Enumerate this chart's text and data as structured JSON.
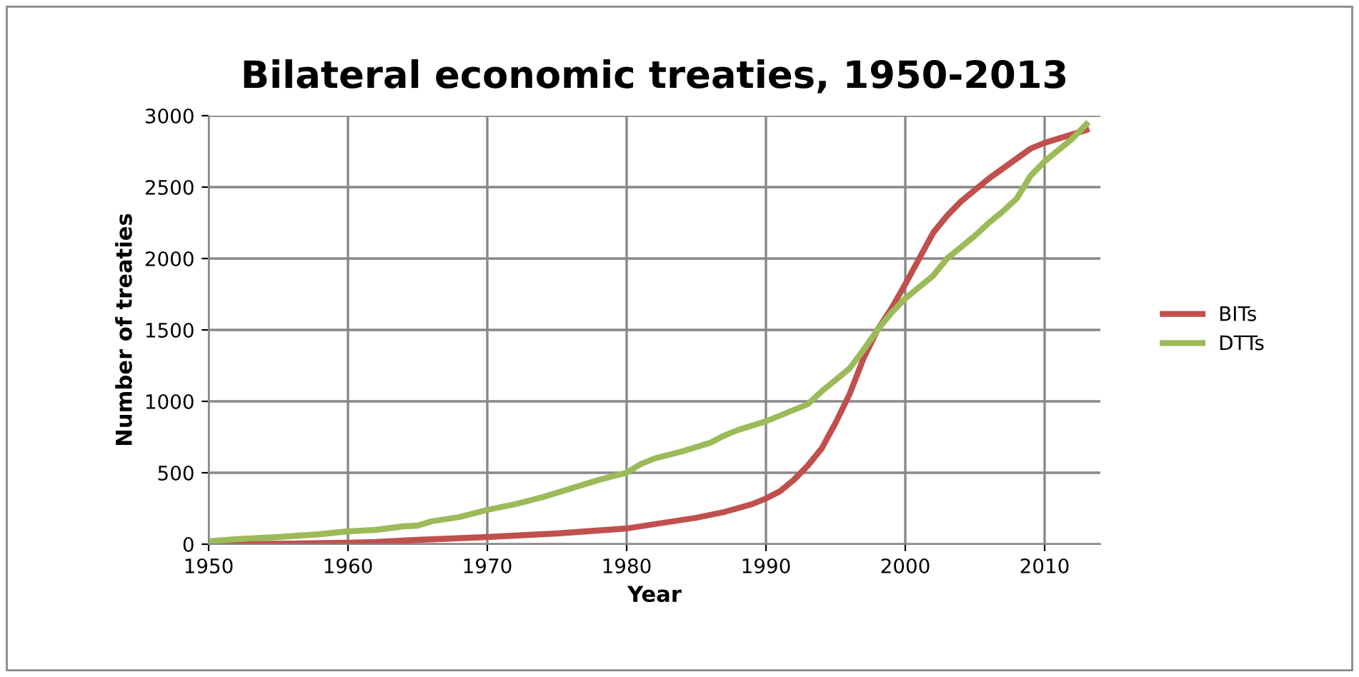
{
  "chart_data": {
    "type": "line",
    "title": "Bilateral economic treaties, 1950-2013",
    "xlabel": "Year",
    "ylabel": "Number of treaties",
    "xlim": [
      1950,
      2014
    ],
    "xticks": [
      1950,
      1960,
      1970,
      1980,
      1990,
      2000,
      2010
    ],
    "ylim": [
      0,
      3000
    ],
    "yticks": [
      0,
      500,
      1000,
      1500,
      2000,
      2500,
      3000
    ],
    "grid": true,
    "legend": "right",
    "marker": "none",
    "line_style": "solid",
    "series": [
      {
        "name": "BITs",
        "color": "#c0504d",
        "x": [
          1950,
          1955,
          1960,
          1962,
          1965,
          1970,
          1975,
          1980,
          1982,
          1985,
          1987,
          1989,
          1990,
          1991,
          1992,
          1993,
          1994,
          1995,
          1996,
          1997,
          1998,
          1999,
          2000,
          2001,
          2002,
          2003,
          2004,
          2005,
          2006,
          2007,
          2008,
          2009,
          2010,
          2011,
          2012,
          2013
        ],
        "values": [
          0,
          3,
          10,
          15,
          30,
          50,
          75,
          110,
          140,
          185,
          225,
          280,
          320,
          370,
          450,
          550,
          670,
          850,
          1050,
          1300,
          1500,
          1650,
          1820,
          2000,
          2180,
          2300,
          2400,
          2480,
          2560,
          2630,
          2700,
          2770,
          2810,
          2840,
          2870,
          2900
        ]
      },
      {
        "name": "DTTs",
        "color": "#9bbb59",
        "x": [
          1950,
          1952,
          1955,
          1958,
          1960,
          1962,
          1964,
          1965,
          1966,
          1968,
          1970,
          1972,
          1974,
          1976,
          1978,
          1980,
          1981,
          1982,
          1984,
          1986,
          1987,
          1988,
          1990,
          1992,
          1993,
          1994,
          1996,
          1997,
          1998,
          1999,
          2000,
          2001,
          2002,
          2003,
          2004,
          2005,
          2006,
          2007,
          2008,
          2009,
          2010,
          2011,
          2012,
          2013
        ],
        "values": [
          20,
          35,
          50,
          70,
          90,
          100,
          125,
          130,
          160,
          190,
          240,
          280,
          330,
          390,
          450,
          500,
          560,
          600,
          650,
          710,
          760,
          800,
          860,
          940,
          980,
          1070,
          1230,
          1360,
          1500,
          1620,
          1720,
          1800,
          1880,
          2000,
          2080,
          2160,
          2250,
          2330,
          2420,
          2580,
          2680,
          2760,
          2840,
          2940
        ]
      }
    ]
  }
}
